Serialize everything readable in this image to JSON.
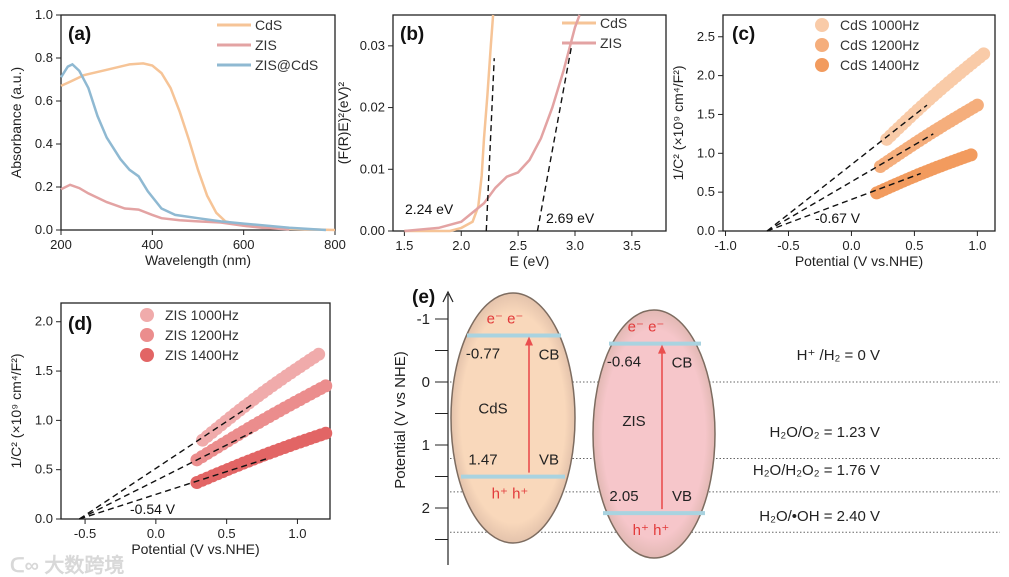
{
  "chart_data": [
    {
      "type": "line",
      "panel_label": "(a)",
      "xlabel": "Wavelength (nm)",
      "ylabel": "Absorbance (a.u.)",
      "xlim": [
        200,
        800
      ],
      "ylim": [
        0,
        1.0
      ],
      "xticks": [
        "200",
        "400",
        "600",
        "800"
      ],
      "yticks": [
        "0.0",
        "0.2",
        "0.4",
        "0.6",
        "0.8",
        "1.0"
      ],
      "legend_position": "top-right",
      "series": [
        {
          "name": "CdS",
          "color": "#f6c497",
          "points": [
            [
              200,
              0.67
            ],
            [
              220,
              0.69
            ],
            [
              250,
              0.72
            ],
            [
              300,
              0.745
            ],
            [
              350,
              0.77
            ],
            [
              380,
              0.775
            ],
            [
              400,
              0.765
            ],
            [
              420,
              0.73
            ],
            [
              440,
              0.66
            ],
            [
              460,
              0.55
            ],
            [
              480,
              0.42
            ],
            [
              500,
              0.28
            ],
            [
              520,
              0.16
            ],
            [
              540,
              0.08
            ],
            [
              560,
              0.04
            ],
            [
              600,
              0.02
            ],
            [
              650,
              0.01
            ],
            [
              700,
              0.005
            ],
            [
              800,
              0
            ]
          ]
        },
        {
          "name": "ZIS",
          "color": "#e3a3a3",
          "points": [
            [
              200,
              0.19
            ],
            [
              220,
              0.21
            ],
            [
              240,
              0.195
            ],
            [
              260,
              0.17
            ],
            [
              300,
              0.13
            ],
            [
              340,
              0.1
            ],
            [
              370,
              0.095
            ],
            [
              400,
              0.07
            ],
            [
              420,
              0.055
            ],
            [
              460,
              0.045
            ],
            [
              500,
              0.04
            ],
            [
              550,
              0.035
            ],
            [
              600,
              0.02
            ],
            [
              640,
              0.01
            ],
            [
              700,
              0.003
            ]
          ]
        },
        {
          "name": "ZIS@CdS",
          "color": "#8fb9d2",
          "points": [
            [
              200,
              0.71
            ],
            [
              215,
              0.76
            ],
            [
              225,
              0.77
            ],
            [
              240,
              0.74
            ],
            [
              260,
              0.66
            ],
            [
              280,
              0.53
            ],
            [
              300,
              0.43
            ],
            [
              330,
              0.33
            ],
            [
              350,
              0.28
            ],
            [
              370,
              0.25
            ],
            [
              390,
              0.18
            ],
            [
              420,
              0.1
            ],
            [
              450,
              0.07
            ],
            [
              500,
              0.055
            ],
            [
              550,
              0.04
            ],
            [
              600,
              0.03
            ],
            [
              700,
              0.01
            ],
            [
              780,
              0
            ]
          ]
        }
      ]
    },
    {
      "type": "line",
      "panel_label": "(b)",
      "xlabel": "E (eV)",
      "ylabel": "(F(R)E)²(eV)²",
      "xlim": [
        1.4,
        3.8
      ],
      "ylim": [
        0,
        0.035
      ],
      "xticks": [
        "1.5",
        "2.0",
        "2.5",
        "3.0",
        "3.5"
      ],
      "yticks": [
        "0.00",
        "0.01",
        "0.02",
        "0.03"
      ],
      "legend_position": "top-right",
      "series": [
        {
          "name": "CdS",
          "color": "#f6c497",
          "points": [
            [
              1.5,
              0
            ],
            [
              1.9,
              0
            ],
            [
              2.0,
              0.0005
            ],
            [
              2.1,
              0.0015
            ],
            [
              2.15,
              0.004
            ],
            [
              2.18,
              0.009
            ],
            [
              2.2,
              0.015
            ],
            [
              2.23,
              0.022
            ],
            [
              2.26,
              0.03
            ],
            [
              2.28,
              0.035
            ]
          ]
        },
        {
          "name": "ZIS",
          "color": "#e3a3a3",
          "points": [
            [
              1.5,
              0
            ],
            [
              1.8,
              0.0005
            ],
            [
              2.0,
              0.0015
            ],
            [
              2.1,
              0.003
            ],
            [
              2.2,
              0.0045
            ],
            [
              2.3,
              0.007
            ],
            [
              2.4,
              0.0088
            ],
            [
              2.5,
              0.0095
            ],
            [
              2.6,
              0.0115
            ],
            [
              2.7,
              0.015
            ],
            [
              2.8,
              0.02
            ],
            [
              2.9,
              0.026
            ],
            [
              3.0,
              0.033
            ],
            [
              3.04,
              0.035
            ]
          ]
        }
      ],
      "fit_lines": [
        [
          [
            2.22,
            0
          ],
          [
            2.29,
            0.028
          ]
        ],
        [
          [
            2.67,
            0
          ],
          [
            2.97,
            0.03
          ]
        ]
      ],
      "annotations": [
        "2.24 eV",
        "2.69 eV"
      ]
    },
    {
      "type": "scatter",
      "panel_label": "(c)",
      "xlabel": "Potential (V vs.NHE)",
      "ylabel": "1/C² (×10⁹ cm⁴/F²)",
      "xlim": [
        -1.02,
        1.14
      ],
      "ylim": [
        0,
        2.78
      ],
      "xticks": [
        "-1.0",
        "-0.5",
        "0.0",
        "0.5",
        "1.0"
      ],
      "yticks": [
        "0.0",
        "0.5",
        "1.0",
        "1.5",
        "2.0",
        "2.5"
      ],
      "legend_position": "top-right",
      "series": [
        {
          "name": "CdS 1000Hz",
          "color": "#f9cba8",
          "start": [
            0.28,
            1.18
          ],
          "end": [
            1.05,
            2.28
          ]
        },
        {
          "name": "CdS 1200Hz",
          "color": "#f5ae7c",
          "start": [
            0.23,
            0.83
          ],
          "end": [
            1.0,
            1.62
          ]
        },
        {
          "name": "CdS 1400Hz",
          "color": "#f29b5e",
          "start": [
            0.2,
            0.49
          ],
          "end": [
            0.95,
            0.98
          ]
        }
      ],
      "fit_lines": [
        [
          [
            -0.67,
            0
          ],
          [
            0.6,
            1.62
          ]
        ],
        [
          [
            -0.67,
            0
          ],
          [
            0.65,
            1.25
          ]
        ],
        [
          [
            -0.67,
            0
          ],
          [
            0.55,
            0.74
          ]
        ]
      ],
      "annotations": [
        "-0.67 V"
      ]
    },
    {
      "type": "scatter",
      "panel_label": "(d)",
      "xlabel": "Potential (V vs.NHE)",
      "ylabel": "1/C² (×10⁹ cm⁴/F²)",
      "xlim": [
        -0.67,
        1.23
      ],
      "ylim": [
        0,
        2.19
      ],
      "xticks": [
        "-0.5",
        "0.0",
        "0.5",
        "1.0"
      ],
      "yticks": [
        "0.0",
        "0.5",
        "1.0",
        "1.5",
        "2.0"
      ],
      "legend_position": "top-center",
      "series": [
        {
          "name": "ZIS 1000Hz",
          "color": "#f0abab",
          "start": [
            0.33,
            0.8
          ],
          "end": [
            1.15,
            1.67
          ]
        },
        {
          "name": "ZIS 1200Hz",
          "color": "#eb8d8d",
          "start": [
            0.29,
            0.6
          ],
          "end": [
            1.2,
            1.35
          ]
        },
        {
          "name": "ZIS 1400Hz",
          "color": "#e26565",
          "start": [
            0.29,
            0.37
          ],
          "end": [
            1.2,
            0.87
          ]
        }
      ],
      "fit_lines": [
        [
          [
            -0.54,
            0
          ],
          [
            0.68,
            1.16
          ]
        ],
        [
          [
            -0.54,
            0
          ],
          [
            0.68,
            0.88
          ]
        ],
        [
          [
            -0.54,
            0
          ],
          [
            0.78,
            0.61
          ]
        ]
      ],
      "annotations": [
        "-0.54 V"
      ]
    }
  ],
  "band_diagram": {
    "panel_label": "(e)",
    "ylabel": "Potential (V vs NHE)",
    "yticks": [
      "-1",
      "0",
      "1",
      "2"
    ],
    "materials": [
      {
        "name": "CdS",
        "cb": -0.77,
        "vb": 1.47,
        "cb_label": "-0.77",
        "vb_label": "1.47",
        "cb_text": "CB",
        "vb_text": "VB",
        "electrons": "e⁻  e⁻",
        "holes": "h⁺ h⁺",
        "color": "#f9d8bb"
      },
      {
        "name": "ZIS",
        "cb": -0.64,
        "vb": 2.05,
        "cb_label": "-0.64",
        "vb_label": "2.05",
        "cb_text": "CB",
        "vb_text": "VB",
        "electrons": "e⁻  e⁻",
        "holes": "h⁺ h⁺",
        "color": "#f6c6ca"
      }
    ],
    "references": [
      {
        "label": "H⁺ /H₂ = 0 V",
        "value": 0
      },
      {
        "label": "H₂O/O₂ = 1.23 V",
        "value": 1.23
      },
      {
        "label": "H₂O/H₂O₂ = 1.76 V",
        "value": 1.76
      },
      {
        "label": "H₂O/•OH = 2.40 V",
        "value": 2.4
      }
    ],
    "band_color": "#a9d3e0",
    "arrow_color": "#ea4f4f"
  },
  "watermark": "大数跨境"
}
